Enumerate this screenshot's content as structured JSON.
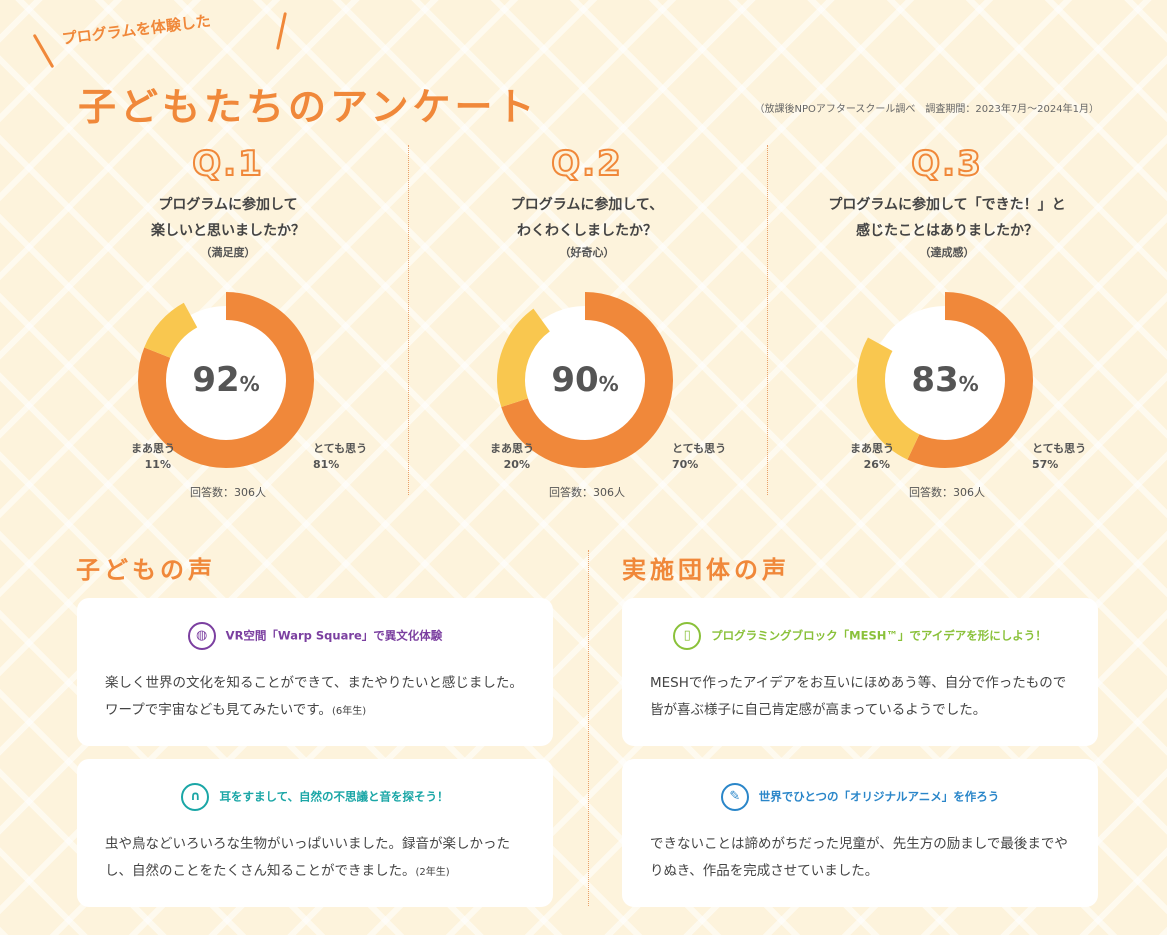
{
  "header": {
    "subtitle": "プログラムを体験した",
    "title": "子どもたちのアンケート",
    "source_note": "（放課後NPOアフタースクール調べ　調査期間：2023年7月〜2024年1月）"
  },
  "colors": {
    "accent": "#f0883a",
    "secondary": "#f9c74f",
    "purple": "#7b3fa0",
    "teal": "#1aa6a6",
    "lime": "#8ac13a",
    "blue": "#2a86c9"
  },
  "chart_data": [
    {
      "type": "pie",
      "label": "Q.1",
      "question": [
        "プログラムに参加して",
        "楽しいと思いましたか？"
      ],
      "sub": "（満足度）",
      "total": "92",
      "total_unit": "%",
      "responses": "回答数：306人",
      "series": [
        {
          "name": "とても思う",
          "value": 81,
          "value_label": "81%"
        },
        {
          "name": "まあ思う",
          "value": 11,
          "value_label": "11%"
        }
      ]
    },
    {
      "type": "pie",
      "label": "Q.2",
      "question": [
        "プログラムに参加して、",
        "わくわくしましたか？"
      ],
      "sub": "（好奇心）",
      "total": "90",
      "total_unit": "%",
      "responses": "回答数：306人",
      "series": [
        {
          "name": "とても思う",
          "value": 70,
          "value_label": "70%"
        },
        {
          "name": "まあ思う",
          "value": 20,
          "value_label": "20%"
        }
      ]
    },
    {
      "type": "pie",
      "label": "Q.3",
      "question": [
        "プログラムに参加して「できた！」と",
        "感じたことはありましたか？"
      ],
      "sub": "（達成感）",
      "total": "83",
      "total_unit": "%",
      "responses": "回答数：306人",
      "series": [
        {
          "name": "とても思う",
          "value": 57,
          "value_label": "57%"
        },
        {
          "name": "まあ思う",
          "value": 26,
          "value_label": "26%"
        }
      ]
    }
  ],
  "children_voices": {
    "title": "子どもの声",
    "cards": [
      {
        "icon": "globe-icon",
        "heading": "VR空間「Warp Square」で異文化体験",
        "body": "楽しく世界の文化を知ることができて、またやりたいと感じました。ワープで宇宙なども見てみたいです。",
        "grade": "(6年生)"
      },
      {
        "icon": "headphones-icon",
        "heading": "耳をすまして、自然の不思議と音を探そう！",
        "body": "虫や鳥などいろいろな生物がいっぱいいました。録音が楽しかったし、自然のことをたくさん知ることができました。",
        "grade": "(2年生)"
      }
    ]
  },
  "org_voices": {
    "title": "実施団体の声",
    "cards": [
      {
        "icon": "block-device-icon",
        "heading": "プログラミングブロック「MESH™」でアイデアを形にしよう！",
        "body": "MESHで作ったアイデアをお互いにほめあう等、自分で作ったもので皆が喜ぶ様子に自己肯定感が高まっているようでした。"
      },
      {
        "icon": "pen-icon",
        "heading": "世界でひとつの「オリジナルアニメ」を作ろう",
        "body": "できないことは諦めがちだった児童が、先生方の励ましで最後までやりぬき、作品を完成させていました。"
      }
    ]
  }
}
